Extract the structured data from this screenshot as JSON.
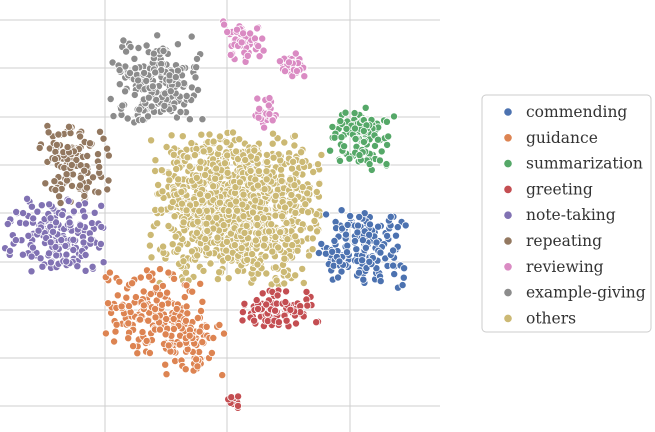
{
  "chart_data": {
    "type": "scatter",
    "title": "",
    "xlabel": "",
    "ylabel": "",
    "xlim": [
      -50,
      50
    ],
    "ylim": [
      -50,
      50
    ],
    "grid": true,
    "legend_position": "right",
    "series": [
      {
        "name": "commending",
        "color": "#4c72b0",
        "clusters": [
          {
            "cx": 32,
            "cy": -6,
            "sx": 5.0,
            "sy": 4.6,
            "n": 170
          }
        ]
      },
      {
        "name": "guidance",
        "color": "#dd8452",
        "clusters": [
          {
            "cx": -16,
            "cy": -22,
            "sx": 5.2,
            "sy": 5.0,
            "n": 150
          },
          {
            "cx": -7,
            "cy": -29,
            "sx": 3.6,
            "sy": 4.0,
            "n": 90
          }
        ]
      },
      {
        "name": "summarization",
        "color": "#55a868",
        "clusters": [
          {
            "cx": 32,
            "cy": 21,
            "sx": 3.6,
            "sy": 4.0,
            "n": 110
          }
        ]
      },
      {
        "name": "greeting",
        "color": "#c44e52",
        "clusters": [
          {
            "cx": 13,
            "cy": -21,
            "sx": 4.2,
            "sy": 2.4,
            "n": 90
          },
          {
            "cx": 3,
            "cy": -44,
            "sx": 1.0,
            "sy": 0.8,
            "n": 10
          }
        ]
      },
      {
        "name": "note-taking",
        "color": "#8172b3",
        "clusters": [
          {
            "cx": -38,
            "cy": -3,
            "sx": 5.8,
            "sy": 4.4,
            "n": 190
          }
        ]
      },
      {
        "name": "repeating",
        "color": "#937860",
        "clusters": [
          {
            "cx": -34,
            "cy": 15,
            "sx": 4.0,
            "sy": 4.6,
            "n": 120
          }
        ]
      },
      {
        "name": "reviewing",
        "color": "#da8bc3",
        "clusters": [
          {
            "cx": 5,
            "cy": 45,
            "sx": 2.2,
            "sy": 2.6,
            "n": 50
          },
          {
            "cx": 16,
            "cy": 39,
            "sx": 1.8,
            "sy": 1.4,
            "n": 28
          },
          {
            "cx": 10,
            "cy": 27,
            "sx": 1.6,
            "sy": 2.0,
            "n": 26
          }
        ]
      },
      {
        "name": "example-giving",
        "color": "#8c8c8c",
        "clusters": [
          {
            "cx": -15,
            "cy": 34,
            "sx": 5.0,
            "sy": 5.6,
            "n": 210
          }
        ]
      },
      {
        "name": "others",
        "color": "#ccb974",
        "clusters": [
          {
            "cx": 3,
            "cy": 4,
            "sx": 9.0,
            "sy": 8.6,
            "n": 1300
          }
        ]
      }
    ]
  }
}
